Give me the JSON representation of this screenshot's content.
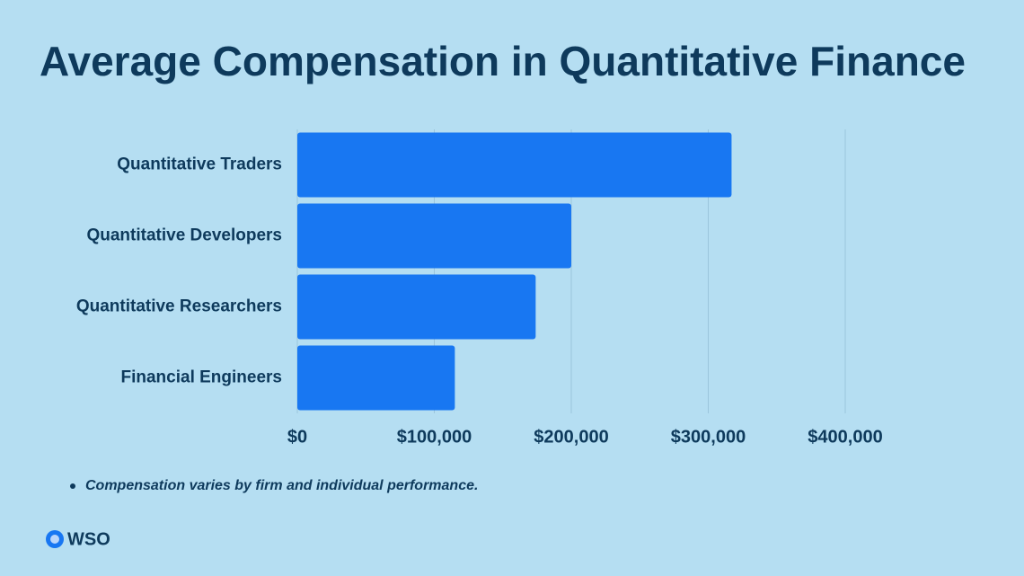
{
  "chart_data": {
    "type": "hbar",
    "title": "Average Compensation in Quantitative Finance",
    "categories": [
      "Quantitative Traders",
      "Quantitative Developers",
      "Quantitative Researchers",
      "Financial Engineers"
    ],
    "values": [
      317000,
      200000,
      174000,
      115000
    ],
    "color": "#1877f2",
    "xlim": [
      0,
      400000
    ],
    "xticks": [
      {
        "value": 0,
        "label": "$0"
      },
      {
        "value": 100000,
        "label": "$100,000"
      },
      {
        "value": 200000,
        "label": "$200,000"
      },
      {
        "value": 300000,
        "label": "$300,000"
      },
      {
        "value": 400000,
        "label": "$400,000"
      }
    ],
    "grid": true,
    "note": "Compensation varies by firm and individual performance."
  },
  "brand": "WSO"
}
